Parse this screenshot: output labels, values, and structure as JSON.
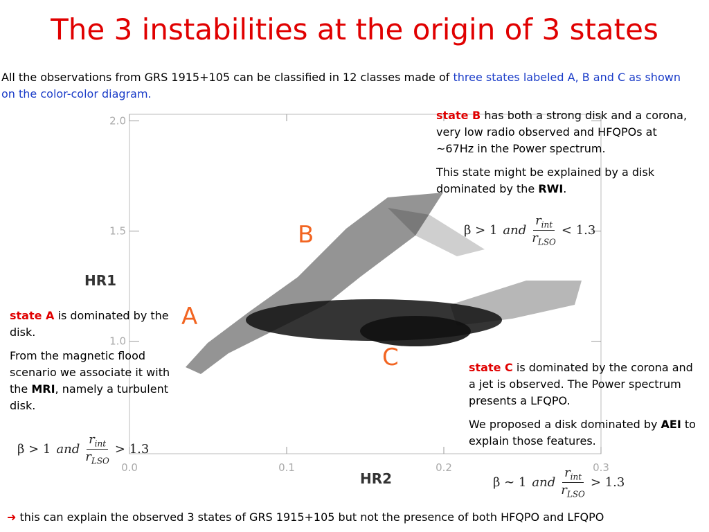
{
  "title": "The 3 instabilities at the origin of 3 states",
  "intro": {
    "text": "All the observations from GRS 1915+105 can be classified in 12 classes made of ",
    "highlight": "three states labeled A, B and C as shown on the color-color diagram."
  },
  "state_b": {
    "label": "state B",
    "lines": [
      " has both a strong disk and a corona,",
      "very low radio observed and HFQPOs at",
      "~67Hz in the Power spectrum."
    ],
    "p2": "This state might be explained by a disk dominated by the ",
    "p2_bold": "RWI",
    "p2_end": "."
  },
  "state_a": {
    "label": "state A",
    "text": " is dominated by the disk.",
    "p2": "From the magnetic flood scenario we associate it with the ",
    "p2_bold": "MRI",
    "p2_end": ", namely a turbulent disk."
  },
  "state_c": {
    "label": "state C",
    "text": " is dominated by the corona and a jet is observed. The Power spectrum presents a LFQPO.",
    "p2": "We proposed a disk dominated by ",
    "p2_bold": "AEI",
    "p2_end": " to explain those features."
  },
  "formula_b": {
    "left": "β > 1",
    "and": "and",
    "num": "r",
    "num_sub": "int",
    "den": "r",
    "den_sub": "LSO",
    "right": "< 1.3"
  },
  "formula_a": {
    "left": "β > 1",
    "and": "and",
    "num": "r",
    "num_sub": "int",
    "den": "r",
    "den_sub": "LSO",
    "right": "> 1.3"
  },
  "formula_c": {
    "left": "β ∼ 1",
    "and": "and",
    "num": "r",
    "num_sub": "int",
    "den": "r",
    "den_sub": "LSO",
    "right": "> 1.3"
  },
  "footer": {
    "arrow": "➜",
    "text": " this can explain the observed 3 states of GRS 1915+105 but not the presence of both HFQPO and LFQPO"
  },
  "chart_data": {
    "type": "scatter",
    "xlabel": "HR2",
    "ylabel": "HR1",
    "annotations": [
      "A",
      "B",
      "C"
    ],
    "xlim": [
      0,
      0.3
    ],
    "ylim": [
      0.49,
      2.03
    ],
    "xticks": [
      {
        "value": 0,
        "label": "0.0"
      },
      0.1,
      0.2,
      0.3
    ],
    "yticks": [
      {
        "value": 1,
        "label": "1.0"
      },
      1.5,
      {
        "value": 2,
        "label": "2.0"
      }
    ]
  }
}
